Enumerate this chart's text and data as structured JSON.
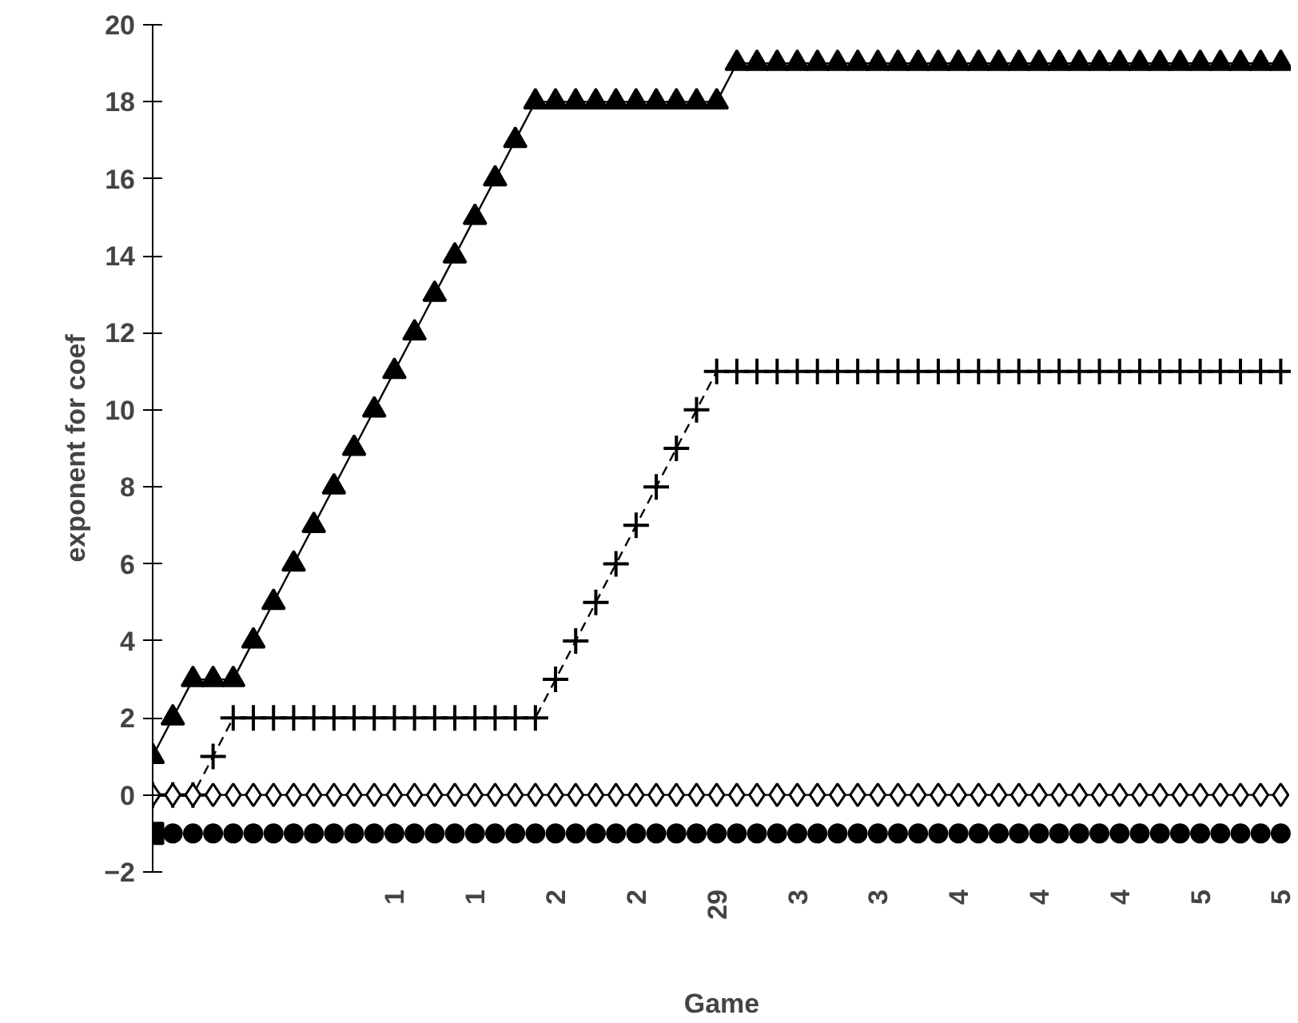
{
  "chart_data": {
    "type": "line",
    "xlabel": "Game",
    "ylabel": "exponent for coef",
    "categories": [
      null,
      null,
      null,
      null,
      null,
      null,
      null,
      null,
      null,
      null,
      null,
      null,
      "1",
      null,
      null,
      null,
      "1",
      null,
      null,
      null,
      "2",
      null,
      null,
      null,
      "2",
      null,
      null,
      null,
      "29",
      null,
      null,
      null,
      "3",
      null,
      null,
      null,
      "3",
      null,
      null,
      null,
      "4",
      null,
      null,
      null,
      "4",
      null,
      null,
      null,
      "4",
      null,
      null,
      null,
      "5",
      null,
      null,
      null,
      "5"
    ],
    "series": [
      {
        "color": "#000000",
        "marker": "triangle",
        "line_style": "solid",
        "values": [
          1,
          2,
          3,
          3,
          3,
          4,
          5,
          6,
          7,
          8,
          9,
          10,
          11,
          12,
          13,
          14,
          15,
          16,
          17,
          18,
          18,
          18,
          18,
          18,
          18,
          18,
          18,
          18,
          18,
          19,
          19,
          19,
          19,
          19,
          19,
          19,
          19,
          19,
          19,
          19,
          19,
          19,
          19,
          19,
          19,
          19,
          19,
          19,
          19,
          19,
          19,
          19,
          19,
          19,
          19,
          19,
          19
        ]
      },
      {
        "color": "#000000",
        "marker": "cross",
        "line_style": "dashed",
        "values": [
          0,
          0,
          0,
          1,
          2,
          2,
          2,
          2,
          2,
          2,
          2,
          2,
          2,
          2,
          2,
          2,
          2,
          2,
          2,
          2,
          3,
          4,
          5,
          6,
          7,
          8,
          9,
          10,
          11,
          11,
          11,
          11,
          11,
          11,
          11,
          11,
          11,
          11,
          11,
          11,
          11,
          11,
          11,
          11,
          11,
          11,
          11,
          11,
          11,
          11,
          11,
          11,
          11,
          11,
          11,
          11,
          11
        ]
      },
      {
        "color": "#000000",
        "marker": "diamond",
        "line_style": "solid",
        "values": [
          0,
          0,
          0,
          0,
          0,
          0,
          0,
          0,
          0,
          0,
          0,
          0,
          0,
          0,
          0,
          0,
          0,
          0,
          0,
          0,
          0,
          0,
          0,
          0,
          0,
          0,
          0,
          0,
          0,
          0,
          0,
          0,
          0,
          0,
          0,
          0,
          0,
          0,
          0,
          0,
          0,
          0,
          0,
          0,
          0,
          0,
          0,
          0,
          0,
          0,
          0,
          0,
          0,
          0,
          0,
          0,
          0
        ]
      },
      {
        "type": "scatter",
        "color": "#000000",
        "marker": "circle",
        "values": [
          null,
          -1,
          -1,
          -1,
          -1,
          -1,
          -1,
          -1,
          -1,
          -1,
          -1,
          -1,
          -1,
          -1,
          -1,
          -1,
          -1,
          -1,
          -1,
          -1,
          -1,
          -1,
          -1,
          -1,
          -1,
          -1,
          -1,
          -1,
          -1,
          -1,
          -1,
          -1,
          -1,
          -1,
          -1,
          -1,
          -1,
          -1,
          -1,
          -1,
          -1,
          -1,
          -1,
          -1,
          -1,
          -1,
          -1,
          -1,
          -1,
          -1,
          -1,
          -1,
          -1,
          -1,
          -1,
          -1,
          -1
        ]
      },
      {
        "color": "#000000",
        "marker": "square",
        "line_style": "solid",
        "values": [
          -1,
          null,
          null,
          null,
          null,
          null,
          null,
          null,
          null,
          null,
          null,
          null,
          null,
          null,
          null,
          null,
          null,
          null,
          null,
          null,
          null,
          null,
          null,
          null,
          null,
          null,
          null,
          null,
          null,
          null,
          null,
          null,
          null,
          null,
          null,
          null,
          null,
          null,
          null,
          null,
          null,
          null,
          null,
          null,
          null,
          null,
          null,
          null,
          null,
          null,
          null,
          null,
          null,
          null,
          null,
          null,
          null
        ]
      }
    ],
    "ylim": [
      -2,
      20
    ],
    "yticks": [
      -2,
      0,
      2,
      4,
      6,
      8,
      10,
      12,
      14,
      16,
      18,
      20
    ],
    "grid": false
  }
}
